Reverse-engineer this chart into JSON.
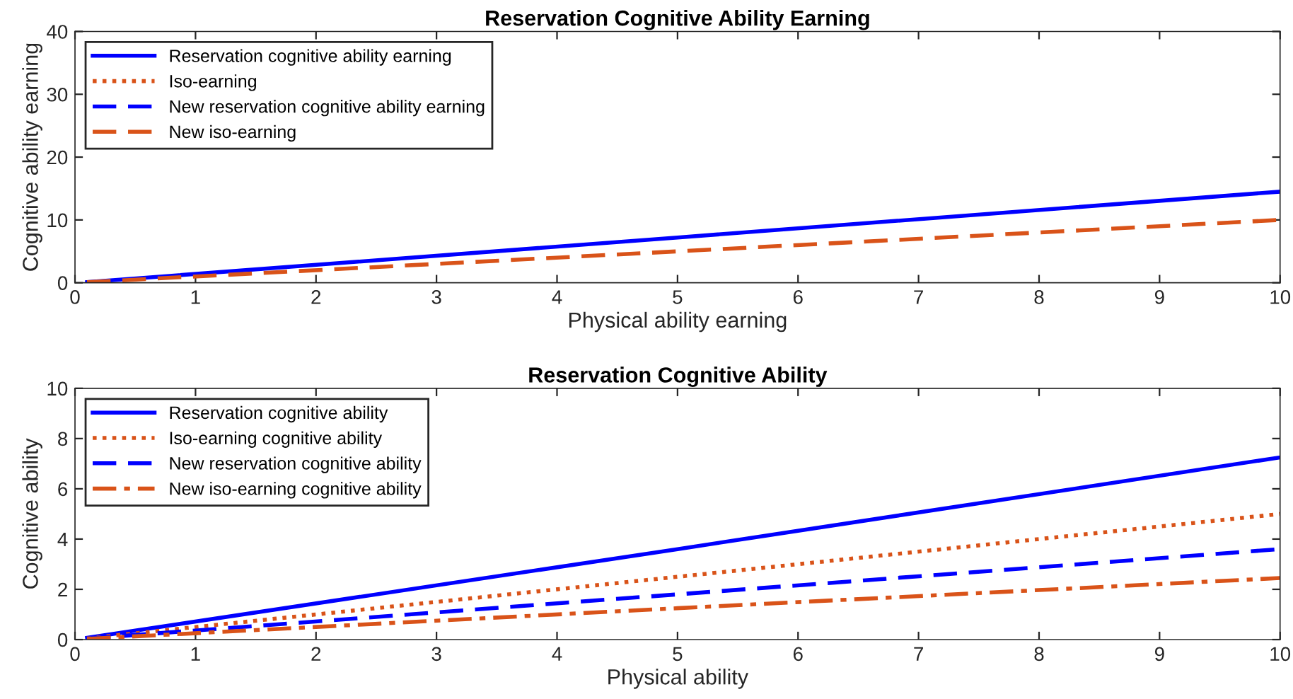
{
  "chart_data": [
    {
      "type": "line",
      "title": "Reservation Cognitive Ability Earning",
      "xlabel": "Physical ability earning",
      "ylabel": "Cognitive ability earning",
      "x": [
        0.1,
        5,
        10
      ],
      "xlim": [
        0,
        10
      ],
      "xticks": [
        0,
        1,
        2,
        3,
        4,
        5,
        6,
        7,
        8,
        9,
        10
      ],
      "ylim": [
        0,
        40
      ],
      "yticks": [
        0,
        10,
        20,
        30,
        40
      ],
      "grid": false,
      "legend": "top left",
      "marker": "none",
      "series": [
        {
          "name": "Reservation cognitive ability earning",
          "color": "#0000ff",
          "line_style": "solid",
          "values": [
            0.1,
            7.2,
            14.5
          ]
        },
        {
          "name": "Iso-earning",
          "color": "#d95319",
          "line_style": "dotted",
          "values": [
            null,
            null,
            null
          ]
        },
        {
          "name": "New reservation cognitive ability earning",
          "color": "#0000ff",
          "line_style": "dashed",
          "values": [
            null,
            null,
            null
          ]
        },
        {
          "name": "New iso-earning",
          "color": "#d95319",
          "line_style": "dashed",
          "values": [
            0.1,
            5,
            10
          ]
        }
      ]
    },
    {
      "type": "line",
      "title": "Reservation Cognitive Ability",
      "xlabel": "Physical ability",
      "ylabel": "Cognitive ability",
      "x": [
        0.1,
        5,
        10
      ],
      "xlim": [
        0,
        10
      ],
      "xticks": [
        0,
        1,
        2,
        3,
        4,
        5,
        6,
        7,
        8,
        9,
        10
      ],
      "ylim": [
        0,
        10
      ],
      "yticks": [
        0,
        2,
        4,
        6,
        8,
        10
      ],
      "grid": false,
      "legend": "top left",
      "marker": "none",
      "series": [
        {
          "name": "Reservation cognitive ability",
          "color": "#0000ff",
          "line_style": "solid",
          "values": [
            0.07,
            3.6,
            7.25
          ]
        },
        {
          "name": "Iso-earning cognitive ability",
          "color": "#d95319",
          "line_style": "dotted",
          "values": [
            0.05,
            2.5,
            5
          ]
        },
        {
          "name": "New reservation cognitive ability",
          "color": "#0000ff",
          "line_style": "dashed",
          "values": [
            0.04,
            1.8,
            3.6
          ]
        },
        {
          "name": "New iso-earning cognitive ability",
          "color": "#d95319",
          "line_style": "dashdot",
          "values": [
            0.03,
            1.25,
            2.45
          ]
        }
      ]
    }
  ]
}
